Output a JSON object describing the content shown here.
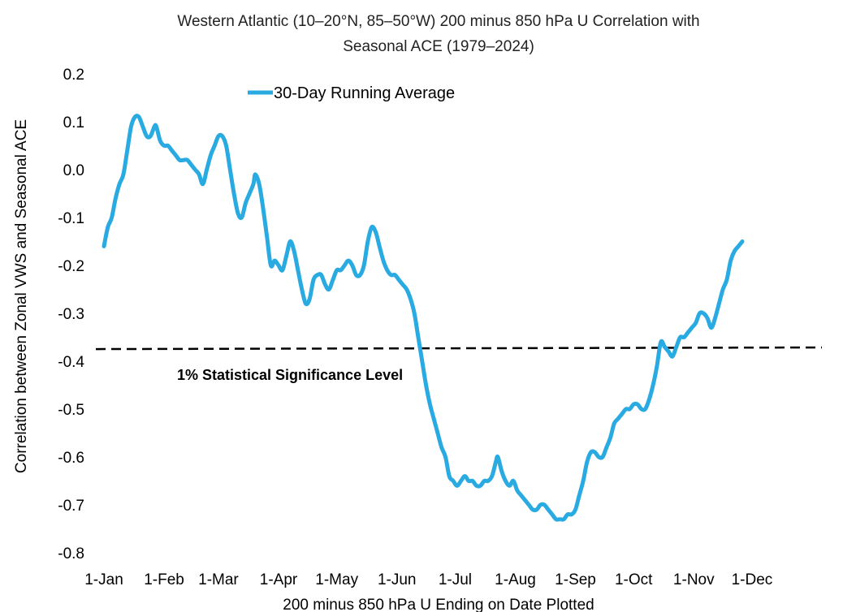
{
  "chart_data": {
    "type": "line",
    "title_line1": "Western Atlantic (10–20°N, 85–50°W) 200 minus 850 hPa U Correlation with",
    "title_line2": "Seasonal ACE (1979–2024)",
    "xlabel": "200 minus 850 hPa U Ending on Date Plotted",
    "ylabel": "Correlation between Zonal VWS  and Seasonal ACE",
    "ylim": [
      -0.8,
      0.2
    ],
    "xlim": [
      0,
      365
    ],
    "y_ticks": [
      {
        "value": 0.2,
        "label": "0.2"
      },
      {
        "value": 0.1,
        "label": "0.1"
      },
      {
        "value": 0.0,
        "label": "0.0"
      },
      {
        "value": -0.1,
        "label": "-0.1"
      },
      {
        "value": -0.2,
        "label": "-0.2"
      },
      {
        "value": -0.3,
        "label": "-0.3"
      },
      {
        "value": -0.4,
        "label": "-0.4"
      },
      {
        "value": -0.5,
        "label": "-0.5"
      },
      {
        "value": -0.6,
        "label": "-0.6"
      },
      {
        "value": -0.7,
        "label": "-0.7"
      },
      {
        "value": -0.8,
        "label": "-0.8"
      }
    ],
    "x_ticks": [
      {
        "day": 0,
        "label": "1-Jan"
      },
      {
        "day": 31,
        "label": "1-Feb"
      },
      {
        "day": 59,
        "label": "1-Mar"
      },
      {
        "day": 90,
        "label": "1-Apr"
      },
      {
        "day": 120,
        "label": "1-May"
      },
      {
        "day": 151,
        "label": "1-Jun"
      },
      {
        "day": 181,
        "label": "1-Jul"
      },
      {
        "day": 212,
        "label": "1-Aug"
      },
      {
        "day": 243,
        "label": "1-Sep"
      },
      {
        "day": 273,
        "label": "1-Oct"
      },
      {
        "day": 304,
        "label": "1-Nov"
      },
      {
        "day": 334,
        "label": "1-Dec"
      }
    ],
    "legend": {
      "label": "30-Day Running Average",
      "position": "top-left"
    },
    "significance": {
      "value": -0.373,
      "label": "1% Statistical Significance Level"
    },
    "line_color": "#29ABE2",
    "series": [
      {
        "name": "30-Day Running Average",
        "points": [
          [
            0,
            -0.16
          ],
          [
            2,
            -0.12
          ],
          [
            4,
            -0.1
          ],
          [
            6,
            -0.06
          ],
          [
            8,
            -0.03
          ],
          [
            10,
            -0.01
          ],
          [
            12,
            0.04
          ],
          [
            14,
            0.09
          ],
          [
            16,
            0.11
          ],
          [
            18,
            0.11
          ],
          [
            20,
            0.09
          ],
          [
            22,
            0.07
          ],
          [
            24,
            0.07
          ],
          [
            26,
            0.09
          ],
          [
            27,
            0.09
          ],
          [
            29,
            0.06
          ],
          [
            31,
            0.05
          ],
          [
            33,
            0.05
          ],
          [
            35,
            0.04
          ],
          [
            37,
            0.03
          ],
          [
            39,
            0.02
          ],
          [
            41,
            0.02
          ],
          [
            43,
            0.02
          ],
          [
            45,
            0.01
          ],
          [
            47,
            0.0
          ],
          [
            49,
            -0.01
          ],
          [
            51,
            -0.03
          ],
          [
            53,
            0.0
          ],
          [
            55,
            0.03
          ],
          [
            57,
            0.05
          ],
          [
            59,
            0.07
          ],
          [
            61,
            0.07
          ],
          [
            63,
            0.05
          ],
          [
            65,
            0.0
          ],
          [
            67,
            -0.05
          ],
          [
            69,
            -0.09
          ],
          [
            71,
            -0.1
          ],
          [
            73,
            -0.07
          ],
          [
            75,
            -0.05
          ],
          [
            77,
            -0.03
          ],
          [
            78,
            -0.01
          ],
          [
            80,
            -0.03
          ],
          [
            82,
            -0.08
          ],
          [
            84,
            -0.14
          ],
          [
            86,
            -0.2
          ],
          [
            88,
            -0.19
          ],
          [
            90,
            -0.2
          ],
          [
            92,
            -0.21
          ],
          [
            94,
            -0.18
          ],
          [
            96,
            -0.15
          ],
          [
            98,
            -0.17
          ],
          [
            100,
            -0.21
          ],
          [
            102,
            -0.25
          ],
          [
            104,
            -0.28
          ],
          [
            106,
            -0.27
          ],
          [
            108,
            -0.23
          ],
          [
            110,
            -0.22
          ],
          [
            112,
            -0.22
          ],
          [
            114,
            -0.24
          ],
          [
            116,
            -0.25
          ],
          [
            118,
            -0.23
          ],
          [
            120,
            -0.21
          ],
          [
            122,
            -0.21
          ],
          [
            124,
            -0.2
          ],
          [
            126,
            -0.19
          ],
          [
            128,
            -0.2
          ],
          [
            130,
            -0.22
          ],
          [
            132,
            -0.22
          ],
          [
            134,
            -0.2
          ],
          [
            136,
            -0.15
          ],
          [
            138,
            -0.12
          ],
          [
            140,
            -0.13
          ],
          [
            142,
            -0.16
          ],
          [
            144,
            -0.19
          ],
          [
            146,
            -0.21
          ],
          [
            148,
            -0.22
          ],
          [
            150,
            -0.22
          ],
          [
            152,
            -0.23
          ],
          [
            154,
            -0.24
          ],
          [
            156,
            -0.25
          ],
          [
            158,
            -0.27
          ],
          [
            160,
            -0.3
          ],
          [
            162,
            -0.35
          ],
          [
            164,
            -0.4
          ],
          [
            166,
            -0.45
          ],
          [
            168,
            -0.49
          ],
          [
            170,
            -0.52
          ],
          [
            172,
            -0.55
          ],
          [
            174,
            -0.58
          ],
          [
            176,
            -0.6
          ],
          [
            178,
            -0.64
          ],
          [
            180,
            -0.65
          ],
          [
            182,
            -0.66
          ],
          [
            184,
            -0.65
          ],
          [
            186,
            -0.64
          ],
          [
            188,
            -0.65
          ],
          [
            190,
            -0.65
          ],
          [
            192,
            -0.66
          ],
          [
            194,
            -0.66
          ],
          [
            196,
            -0.65
          ],
          [
            198,
            -0.65
          ],
          [
            200,
            -0.64
          ],
          [
            202,
            -0.61
          ],
          [
            203,
            -0.6
          ],
          [
            205,
            -0.63
          ],
          [
            207,
            -0.65
          ],
          [
            209,
            -0.66
          ],
          [
            211,
            -0.65
          ],
          [
            213,
            -0.67
          ],
          [
            215,
            -0.68
          ],
          [
            217,
            -0.69
          ],
          [
            219,
            -0.7
          ],
          [
            221,
            -0.71
          ],
          [
            223,
            -0.71
          ],
          [
            225,
            -0.7
          ],
          [
            227,
            -0.7
          ],
          [
            229,
            -0.71
          ],
          [
            231,
            -0.72
          ],
          [
            233,
            -0.73
          ],
          [
            235,
            -0.73
          ],
          [
            237,
            -0.73
          ],
          [
            239,
            -0.72
          ],
          [
            241,
            -0.72
          ],
          [
            243,
            -0.71
          ],
          [
            245,
            -0.68
          ],
          [
            247,
            -0.65
          ],
          [
            249,
            -0.61
          ],
          [
            251,
            -0.59
          ],
          [
            253,
            -0.59
          ],
          [
            255,
            -0.6
          ],
          [
            257,
            -0.6
          ],
          [
            259,
            -0.58
          ],
          [
            261,
            -0.56
          ],
          [
            263,
            -0.53
          ],
          [
            265,
            -0.52
          ],
          [
            267,
            -0.51
          ],
          [
            269,
            -0.5
          ],
          [
            271,
            -0.5
          ],
          [
            273,
            -0.49
          ],
          [
            275,
            -0.49
          ],
          [
            277,
            -0.5
          ],
          [
            279,
            -0.5
          ],
          [
            281,
            -0.48
          ],
          [
            283,
            -0.45
          ],
          [
            285,
            -0.41
          ],
          [
            287,
            -0.36
          ],
          [
            289,
            -0.37
          ],
          [
            291,
            -0.38
          ],
          [
            293,
            -0.39
          ],
          [
            295,
            -0.37
          ],
          [
            297,
            -0.35
          ],
          [
            299,
            -0.35
          ],
          [
            301,
            -0.34
          ],
          [
            303,
            -0.33
          ],
          [
            305,
            -0.32
          ],
          [
            307,
            -0.3
          ],
          [
            309,
            -0.3
          ],
          [
            311,
            -0.31
          ],
          [
            313,
            -0.33
          ],
          [
            315,
            -0.31
          ],
          [
            317,
            -0.28
          ],
          [
            319,
            -0.25
          ],
          [
            321,
            -0.23
          ],
          [
            323,
            -0.19
          ],
          [
            325,
            -0.17
          ],
          [
            327,
            -0.16
          ],
          [
            329,
            -0.15
          ]
        ]
      }
    ]
  }
}
